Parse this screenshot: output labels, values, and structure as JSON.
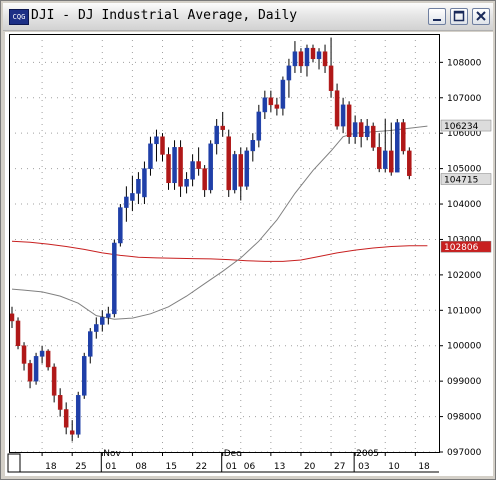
{
  "window": {
    "title": "DJI - DJ Industrial Average, Daily",
    "icon_label": "CQG",
    "buttons": [
      "minimize-icon",
      "maximize-icon",
      "close-icon"
    ]
  },
  "chart_data": {
    "type": "candlestick",
    "title": "DJI - DJ Industrial Average, Daily",
    "ylim": [
      9700,
      10880
    ],
    "y_ticks": [
      9700,
      9800,
      9900,
      10000,
      10100,
      10200,
      10300,
      10400,
      10500,
      10600,
      10700,
      10800
    ],
    "y_tick_labels": [
      "097000",
      "098000",
      "099000",
      "100000",
      "101000",
      "102000",
      "103000",
      "104000",
      "105000",
      "106000",
      "107000",
      "108000"
    ],
    "x_labels": [
      {
        "label": "18",
        "bar": 5
      },
      {
        "label": "25",
        "bar": 10
      },
      {
        "label": "01",
        "bar": 15
      },
      {
        "label": "08",
        "bar": 20
      },
      {
        "label": "15",
        "bar": 25
      },
      {
        "label": "22",
        "bar": 30
      },
      {
        "label": "01",
        "bar": 35
      },
      {
        "label": "06",
        "bar": 38
      },
      {
        "label": "13",
        "bar": 43
      },
      {
        "label": "20",
        "bar": 48
      },
      {
        "label": "27",
        "bar": 53
      },
      {
        "label": "03",
        "bar": 57
      },
      {
        "label": "10",
        "bar": 62
      },
      {
        "label": "18",
        "bar": 67
      }
    ],
    "month_labels": [
      {
        "label": "Nov",
        "bar": 15
      },
      {
        "label": "Dec",
        "bar": 35
      },
      {
        "label": "2005",
        "bar": 57
      }
    ],
    "colors": {
      "up": "#1f3fa8",
      "down": "#b01818",
      "ma_short": "#808080",
      "ma_long": "#c82020",
      "grid": "#a0a0a0"
    },
    "candles": [
      [
        10090,
        10110,
        10050,
        10070
      ],
      [
        10070,
        10080,
        9990,
        10000
      ],
      [
        10000,
        10010,
        9930,
        9950
      ],
      [
        9950,
        9960,
        9880,
        9900
      ],
      [
        9900,
        9980,
        9890,
        9970
      ],
      [
        9970,
        10000,
        9950,
        9985
      ],
      [
        9985,
        9990,
        9930,
        9940
      ],
      [
        9940,
        9950,
        9840,
        9860
      ],
      [
        9860,
        9880,
        9800,
        9820
      ],
      [
        9820,
        9840,
        9750,
        9770
      ],
      [
        9760,
        9790,
        9730,
        9750
      ],
      [
        9750,
        9870,
        9740,
        9860
      ],
      [
        9860,
        9980,
        9850,
        9970
      ],
      [
        9970,
        10050,
        9950,
        10040
      ],
      [
        10040,
        10080,
        10020,
        10060
      ],
      [
        10060,
        10100,
        10040,
        10080
      ],
      [
        10080,
        10110,
        10060,
        10090
      ],
      [
        10090,
        10300,
        10080,
        10290
      ],
      [
        10290,
        10400,
        10280,
        10390
      ],
      [
        10390,
        10450,
        10350,
        10420
      ],
      [
        10410,
        10480,
        10380,
        10430
      ],
      [
        10430,
        10490,
        10400,
        10470
      ],
      [
        10420,
        10520,
        10400,
        10500
      ],
      [
        10500,
        10590,
        10480,
        10570
      ],
      [
        10570,
        10610,
        10520,
        10590
      ],
      [
        10590,
        10600,
        10520,
        10540
      ],
      [
        10540,
        10560,
        10440,
        10460
      ],
      [
        10460,
        10580,
        10440,
        10560
      ],
      [
        10560,
        10580,
        10420,
        10450
      ],
      [
        10450,
        10490,
        10430,
        10470
      ],
      [
        10470,
        10540,
        10450,
        10520
      ],
      [
        10520,
        10560,
        10480,
        10500
      ],
      [
        10500,
        10510,
        10420,
        10440
      ],
      [
        10440,
        10580,
        10430,
        10570
      ],
      [
        10570,
        10640,
        10540,
        10620
      ],
      [
        10620,
        10660,
        10590,
        10610
      ],
      [
        10590,
        10610,
        10420,
        10440
      ],
      [
        10440,
        10550,
        10430,
        10540
      ],
      [
        10540,
        10560,
        10410,
        10450
      ],
      [
        10450,
        10560,
        10440,
        10550
      ],
      [
        10550,
        10600,
        10520,
        10580
      ],
      [
        10580,
        10680,
        10560,
        10660
      ],
      [
        10660,
        10720,
        10640,
        10700
      ],
      [
        10700,
        10720,
        10660,
        10680
      ],
      [
        10680,
        10700,
        10650,
        10670
      ],
      [
        10670,
        10760,
        10650,
        10750
      ],
      [
        10750,
        10810,
        10700,
        10790
      ],
      [
        10790,
        10860,
        10770,
        10830
      ],
      [
        10830,
        10840,
        10770,
        10790
      ],
      [
        10790,
        10850,
        10760,
        10840
      ],
      [
        10840,
        10850,
        10800,
        10810
      ],
      [
        10810,
        10840,
        10780,
        10830
      ],
      [
        10830,
        10850,
        10770,
        10790
      ],
      [
        10790,
        10870,
        10700,
        10720
      ],
      [
        10720,
        10740,
        10610,
        10620
      ],
      [
        10620,
        10700,
        10600,
        10680
      ],
      [
        10680,
        10690,
        10570,
        10590
      ],
      [
        10590,
        10650,
        10570,
        10630
      ],
      [
        10630,
        10640,
        10560,
        10590
      ],
      [
        10590,
        10640,
        10580,
        10620
      ],
      [
        10620,
        10630,
        10550,
        10560
      ],
      [
        10560,
        10600,
        10490,
        10500
      ],
      [
        10500,
        10640,
        10490,
        10550
      ],
      [
        10550,
        10630,
        10480,
        10490
      ],
      [
        10490,
        10640,
        10490,
        10630
      ],
      [
        10630,
        10640,
        10540,
        10550
      ],
      [
        10550,
        10560,
        10470,
        10480
      ]
    ],
    "ma_short": [
      [
        0,
        10160
      ],
      [
        2,
        10157
      ],
      [
        5,
        10152
      ],
      [
        8,
        10140
      ],
      [
        11,
        10120
      ],
      [
        14,
        10085
      ],
      [
        17,
        10075
      ],
      [
        20,
        10078
      ],
      [
        23,
        10090
      ],
      [
        26,
        10110
      ],
      [
        29,
        10140
      ],
      [
        32,
        10175
      ],
      [
        35,
        10210
      ],
      [
        38,
        10248
      ],
      [
        41,
        10295
      ],
      [
        44,
        10355
      ],
      [
        47,
        10430
      ],
      [
        50,
        10495
      ],
      [
        53,
        10550
      ],
      [
        55,
        10590
      ],
      [
        57,
        10600
      ],
      [
        60,
        10604
      ],
      [
        63,
        10608
      ],
      [
        66,
        10614
      ],
      [
        69,
        10620
      ]
    ],
    "ma_long": [
      [
        0,
        10295
      ],
      [
        3,
        10292
      ],
      [
        6,
        10287
      ],
      [
        9,
        10280
      ],
      [
        12,
        10272
      ],
      [
        15,
        10262
      ],
      [
        18,
        10255
      ],
      [
        21,
        10250
      ],
      [
        24,
        10248
      ],
      [
        27,
        10247
      ],
      [
        30,
        10246
      ],
      [
        33,
        10245
      ],
      [
        36,
        10243
      ],
      [
        39,
        10240
      ],
      [
        42,
        10238
      ],
      [
        45,
        10238
      ],
      [
        48,
        10242
      ],
      [
        51,
        10252
      ],
      [
        54,
        10262
      ],
      [
        57,
        10270
      ],
      [
        60,
        10276
      ],
      [
        63,
        10280
      ],
      [
        66,
        10282
      ],
      [
        69,
        10282
      ]
    ],
    "price_flags": [
      {
        "label": "106234",
        "value": 10623,
        "bg": "#dcdcdc",
        "fg": "#000000"
      },
      {
        "label": "104715",
        "value": 10472,
        "bg": "#dcdcdc",
        "fg": "#000000"
      },
      {
        "label": "102806",
        "value": 10281,
        "bg": "#c82020",
        "fg": "#ffffff"
      }
    ]
  }
}
